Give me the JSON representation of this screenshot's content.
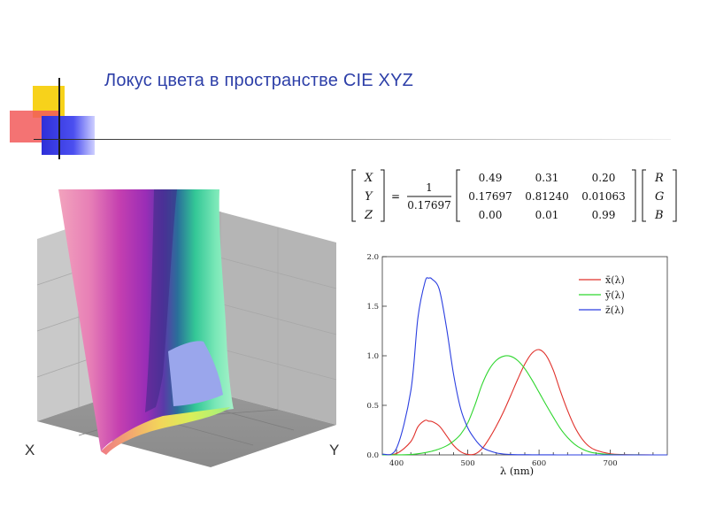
{
  "slide": {
    "title": "Локус цвета в пространстве CIE XYZ"
  },
  "panel3d": {
    "axis_x_label": "X",
    "axis_y_label": "Y"
  },
  "equation": {
    "lhs": [
      "X",
      "Y",
      "Z"
    ],
    "equals": "=",
    "frac_num": "1",
    "frac_den": "0.17697",
    "matrix": [
      [
        "0.49",
        "0.31",
        "0.20"
      ],
      [
        "0.17697",
        "0.81240",
        "0.01063"
      ],
      [
        "0.00",
        "0.01",
        "0.99"
      ]
    ],
    "rhs": [
      "R",
      "G",
      "B"
    ]
  },
  "chart_data": {
    "type": "line",
    "xlabel": "λ (nm)",
    "xlim": [
      380,
      780
    ],
    "ylim": [
      0,
      2.0
    ],
    "x_ticks": [
      "400",
      "500",
      "600",
      "700"
    ],
    "x_tick_values": [
      400,
      500,
      600,
      700
    ],
    "y_ticks": [
      "0.0",
      "0.5",
      "1.0",
      "1.5",
      "2.0"
    ],
    "y_tick_values": [
      0,
      0.5,
      1.0,
      1.5,
      2.0
    ],
    "legend_position": "top-right",
    "x": [
      380,
      400,
      420,
      430,
      440,
      445,
      450,
      460,
      470,
      480,
      490,
      500,
      510,
      520,
      530,
      540,
      550,
      560,
      570,
      580,
      590,
      600,
      610,
      620,
      630,
      640,
      650,
      660,
      670,
      680,
      700,
      720,
      750,
      780
    ],
    "series": [
      {
        "name": "x̄(λ)",
        "color": "#e0312b",
        "values": [
          0.001,
          0.014,
          0.134,
          0.284,
          0.348,
          0.34,
          0.336,
          0.291,
          0.195,
          0.096,
          0.032,
          0.005,
          0.009,
          0.063,
          0.165,
          0.29,
          0.433,
          0.595,
          0.762,
          0.916,
          1.026,
          1.062,
          1.003,
          0.854,
          0.642,
          0.448,
          0.284,
          0.165,
          0.087,
          0.047,
          0.011,
          0.003,
          0.0003,
          4e-05
        ]
      },
      {
        "name": "ȳ(λ)",
        "color": "#2fd62f",
        "values": [
          0.0,
          0.0004,
          0.004,
          0.012,
          0.023,
          0.03,
          0.038,
          0.06,
          0.091,
          0.139,
          0.208,
          0.323,
          0.503,
          0.71,
          0.862,
          0.954,
          0.995,
          0.995,
          0.952,
          0.87,
          0.757,
          0.631,
          0.503,
          0.381,
          0.265,
          0.175,
          0.107,
          0.061,
          0.032,
          0.017,
          0.004,
          0.001,
          0.0001,
          1e-05
        ]
      },
      {
        "name": "z̄(λ)",
        "color": "#2b3fe0",
        "values": [
          0.006,
          0.068,
          0.646,
          1.386,
          1.747,
          1.783,
          1.772,
          1.669,
          1.288,
          0.813,
          0.465,
          0.272,
          0.158,
          0.078,
          0.042,
          0.02,
          0.009,
          0.004,
          0.002,
          0.002,
          0.001,
          0.001,
          0.0003,
          0.0002,
          0.0,
          0.0,
          0.0,
          0.0,
          0.0,
          0.0,
          0.0,
          0.0,
          0.0,
          0.0
        ]
      }
    ]
  }
}
